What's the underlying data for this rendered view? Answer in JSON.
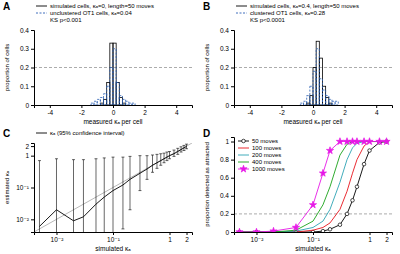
{
  "chart_data": [
    {
      "type": "histogram",
      "title": "A",
      "x_label": "measured κₐ per cell",
      "y_label": "proportion of cells",
      "bins": [
        -1.6,
        -1.4,
        -1.2,
        -1,
        -0.8,
        -0.6,
        -0.4,
        -0.2,
        0,
        0.2,
        0.4,
        0.6,
        0.8,
        1,
        1.2,
        1.4,
        1.6
      ],
      "series": [
        {
          "name": "simulated cells, κₐ=0, length=50 moves",
          "color": "#000000",
          "line_style": "solid",
          "values": [
            0,
            0,
            0,
            0,
            0.01,
            0.03,
            0.12,
            0.33,
            0.33,
            0.12,
            0.04,
            0.01,
            0,
            0,
            0,
            0
          ]
        },
        {
          "name": "unclustered OT1 cells, κₐ=0.04",
          "color": "#2b5fb4",
          "line_style": "dashed",
          "values": [
            0,
            0.01,
            0.02,
            0.03,
            0.04,
            0.06,
            0.1,
            0.2,
            0.3,
            0.12,
            0.05,
            0.03,
            0.02,
            0.01,
            0.01,
            0
          ]
        }
      ],
      "annotations": [
        "KS p<0.001"
      ],
      "xlim": [
        -5,
        5
      ],
      "xticks": [
        -4,
        -2,
        0,
        2,
        4
      ],
      "ylim": [
        0,
        0.4
      ],
      "yticks": [
        0,
        0.1,
        0.2,
        0.3,
        0.4
      ],
      "reference_y": 0.2
    },
    {
      "type": "histogram",
      "title": "B",
      "x_label": "measured κₐ per cell",
      "y_label": "proportion of cells",
      "bins": [
        -1.6,
        -1.4,
        -1.2,
        -1,
        -0.8,
        -0.6,
        -0.4,
        -0.2,
        0,
        0.2,
        0.4,
        0.6,
        0.8,
        1,
        1.2,
        1.4,
        1.6
      ],
      "series": [
        {
          "name": "simulated cells, κₐ=0.4, length=50 moves",
          "color": "#000000",
          "line_style": "solid",
          "values": [
            0,
            0,
            0,
            0,
            0,
            0,
            0.01,
            0.05,
            0.2,
            0.34,
            0.25,
            0.1,
            0.04,
            0.01,
            0,
            0
          ]
        },
        {
          "name": "clustered OT1 cells, κₐ=0.28",
          "color": "#2b5fb4",
          "line_style": "dashed",
          "values": [
            0,
            0,
            0,
            0,
            0.01,
            0.02,
            0.05,
            0.1,
            0.18,
            0.3,
            0.14,
            0.08,
            0.05,
            0.03,
            0.02,
            0.02
          ]
        }
      ],
      "annotations": [
        "KS p<0.0001"
      ],
      "xlim": [
        -5,
        5
      ],
      "xticks": [
        -4,
        -2,
        0,
        2,
        4
      ],
      "ylim": [
        0,
        0.4
      ],
      "yticks": [
        0,
        0.1,
        0.2,
        0.3,
        0.4
      ],
      "reference_y": 0.2
    },
    {
      "type": "line",
      "title": "C",
      "x_label": "simulated κₐ",
      "y_label": "estimated κₐ",
      "log": true,
      "x": [
        0.005,
        0.01,
        0.02,
        0.03,
        0.05,
        0.07,
        0.1,
        0.15,
        0.2,
        0.3,
        0.4,
        0.5,
        0.6,
        0.7,
        0.8,
        0.9,
        1,
        1.2,
        1.4,
        1.6,
        1.8,
        2
      ],
      "series": [
        {
          "name": "κₐ (95% confidence interval)",
          "color": "#000000",
          "marker": "none",
          "line_style": "solid",
          "values": [
            0.006,
            0.02,
            0.009,
            0.012,
            0.03,
            0.05,
            0.08,
            0.12,
            0.18,
            0.28,
            0.38,
            0.5,
            0.6,
            0.7,
            0.8,
            0.9,
            1,
            1.15,
            1.35,
            1.55,
            1.75,
            1.95
          ],
          "ci_low": [
            0.001,
            0.001,
            0.001,
            0.001,
            0.001,
            0.001,
            0.001,
            0.005,
            0.02,
            0.08,
            0.18,
            0.3,
            0.4,
            0.5,
            0.6,
            0.7,
            0.8,
            0.95,
            1.1,
            1.3,
            1.45,
            1.65
          ],
          "ci_high": [
            0.7,
            0.8,
            0.75,
            0.75,
            0.8,
            0.85,
            0.9,
            0.9,
            0.95,
            1,
            1,
            1.05,
            1.1,
            1.15,
            1.2,
            1.3,
            1.35,
            1.5,
            1.7,
            1.9,
            2.1,
            2.3
          ]
        }
      ],
      "diagonal": {
        "x": [
          0.004,
          2.5
        ],
        "y": [
          0.004,
          2.5
        ]
      },
      "xlim": [
        0.004,
        2.5
      ],
      "xticks": [
        {
          "value": 0.01,
          "label": "10⁻²"
        },
        {
          "value": 0.1,
          "label": "10⁻¹"
        },
        1,
        2
      ],
      "ylim": [
        0.004,
        2.5
      ],
      "yticks": [
        {
          "value": 0.01,
          "label": "10⁻²"
        },
        {
          "value": 0.1,
          "label": "10⁻¹"
        },
        1,
        2
      ]
    },
    {
      "type": "line",
      "title": "D",
      "x_label": "simulated κₐ",
      "y_label": "proportion detected as attracted",
      "log": "x",
      "legend": "upper left",
      "x": [
        0.005,
        0.01,
        0.02,
        0.05,
        0.1,
        0.15,
        0.2,
        0.3,
        0.4,
        0.5,
        0.6,
        0.8,
        1,
        1.5,
        2
      ],
      "series": [
        {
          "name": "50 moves",
          "color": "#000000",
          "marker": "circle",
          "line_style": "solid",
          "values": [
            0,
            0,
            0,
            0,
            0,
            0.01,
            0.03,
            0.08,
            0.2,
            0.35,
            0.5,
            0.75,
            0.9,
            0.99,
            1
          ]
        },
        {
          "name": "100 moves",
          "color": "#e8141c",
          "marker": "none",
          "line_style": "solid",
          "values": [
            0,
            0,
            0,
            0,
            0.02,
            0.05,
            0.1,
            0.25,
            0.45,
            0.65,
            0.8,
            0.95,
            1,
            1,
            1
          ]
        },
        {
          "name": "200 moves",
          "color": "#2ca3b3",
          "marker": "none",
          "line_style": "solid",
          "values": [
            0,
            0,
            0,
            0.01,
            0.05,
            0.12,
            0.25,
            0.55,
            0.8,
            0.93,
            0.98,
            1,
            1,
            1,
            1
          ]
        },
        {
          "name": "400 moves",
          "color": "#1aa31a",
          "marker": "none",
          "line_style": "solid",
          "values": [
            0,
            0,
            0,
            0.02,
            0.12,
            0.3,
            0.5,
            0.85,
            0.97,
            1,
            1,
            1,
            1,
            1,
            1
          ]
        },
        {
          "name": "1000 moves",
          "color": "#e619e6",
          "marker": "star",
          "line_style": "solid",
          "values": [
            0,
            0,
            0.01,
            0.05,
            0.3,
            0.65,
            0.9,
            1,
            1,
            1,
            1,
            1,
            1,
            1,
            1
          ]
        }
      ],
      "xlim": [
        0.004,
        2.5
      ],
      "xticks": [
        {
          "value": 0.01,
          "label": "10⁻²"
        },
        {
          "value": 0.1,
          "label": "10⁻¹"
        },
        1,
        2
      ],
      "ylim": [
        0,
        1.05
      ],
      "yticks": [
        0,
        0.2,
        0.4,
        0.6,
        0.8,
        1
      ],
      "reference_y": 0.2
    }
  ]
}
